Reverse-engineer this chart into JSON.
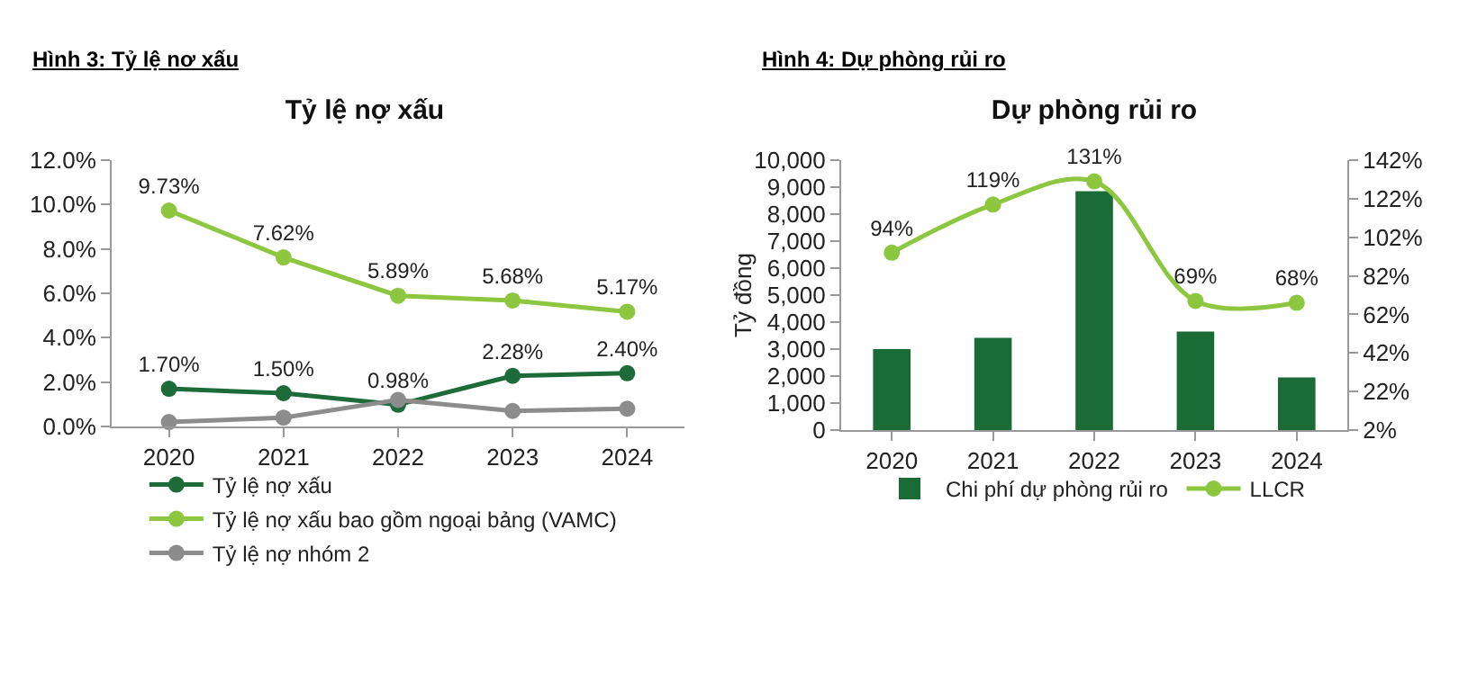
{
  "chart_data": [
    {
      "type": "line",
      "title": "Hình 3: Tỷ lệ nơ xấu",
      "subtitle": "Tỷ lệ nợ xấu",
      "categories": [
        "2020",
        "2021",
        "2022",
        "2023",
        "2024"
      ],
      "ylim": [
        0,
        12
      ],
      "yticks": [
        {
          "value": 0,
          "label": "0.0%"
        },
        {
          "value": 2,
          "label": "2.0%"
        },
        {
          "value": 4,
          "label": "4.0%"
        },
        {
          "value": 6,
          "label": "6.0%"
        },
        {
          "value": 8,
          "label": "8.0%"
        },
        {
          "value": 10,
          "label": "10.0%"
        },
        {
          "value": 12,
          "label": "12.0%"
        }
      ],
      "grid": false,
      "legend": "bottom left",
      "marker": "circle",
      "line_style": "solid",
      "series": [
        {
          "name": "Tỷ lệ nợ xấu",
          "color": "#1e6b3a",
          "values": [
            1.7,
            1.5,
            0.98,
            2.28,
            2.4
          ],
          "value_labels": [
            "1.70%",
            "1.50%",
            "0.98%",
            "2.28%",
            "2.40%"
          ]
        },
        {
          "name": "Tỷ lệ nợ xấu bao gồm ngoại bảng (VAMC)",
          "color": "#8dc63f",
          "values": [
            9.73,
            7.62,
            5.89,
            5.68,
            5.17
          ],
          "value_labels": [
            "9.73%",
            "7.62%",
            "5.89%",
            "5.68%",
            "5.17%"
          ]
        },
        {
          "name": "Tỷ lệ nợ nhóm 2",
          "color": "#8c8c8c",
          "values": [
            0.2,
            0.4,
            1.2,
            0.7,
            0.8
          ]
        }
      ]
    },
    {
      "type": "bar",
      "title": "Hình 4: Dự phòng rủi ro",
      "subtitle": "Dự phòng rủi ro",
      "ylabel": "Tỷ đồng",
      "categories": [
        "2020",
        "2021",
        "2022",
        "2023",
        "2024"
      ],
      "ylim": [
        0,
        10000
      ],
      "yticks": [
        0,
        {
          "value": 1000,
          "label": "1,000"
        },
        {
          "value": 2000,
          "label": "2,000"
        },
        {
          "value": 3000,
          "label": "3,000"
        },
        {
          "value": 4000,
          "label": "4,000"
        },
        {
          "value": 5000,
          "label": "5,000"
        },
        {
          "value": 6000,
          "label": "6,000"
        },
        {
          "value": 7000,
          "label": "7,000"
        },
        {
          "value": 8000,
          "label": "8,000"
        },
        {
          "value": 9000,
          "label": "9,000"
        },
        {
          "value": 10000,
          "label": "10,000"
        }
      ],
      "y2lim": [
        2,
        142
      ],
      "y2ticks": [
        {
          "value": 2,
          "label": "2%"
        },
        {
          "value": 22,
          "label": "22%"
        },
        {
          "value": 42,
          "label": "42%"
        },
        {
          "value": 62,
          "label": "62%"
        },
        {
          "value": 82,
          "label": "82%"
        },
        {
          "value": 102,
          "label": "102%"
        },
        {
          "value": 122,
          "label": "122%"
        },
        {
          "value": 142,
          "label": "142%"
        }
      ],
      "grid": false,
      "legend": "bottom",
      "series": [
        {
          "name": "Chi phí dự phòng rủi ro",
          "color": "#1a6b35",
          "values": [
            3000,
            3420,
            8850,
            3650,
            1950
          ]
        },
        {
          "name": "LLCR",
          "type": "line",
          "axis": "y2",
          "color": "#8dc63f",
          "marker": "circle",
          "values": [
            94,
            119,
            131,
            69,
            68
          ],
          "value_labels": [
            "94%",
            "119%",
            "131%",
            "69%",
            "68%"
          ]
        }
      ]
    }
  ]
}
